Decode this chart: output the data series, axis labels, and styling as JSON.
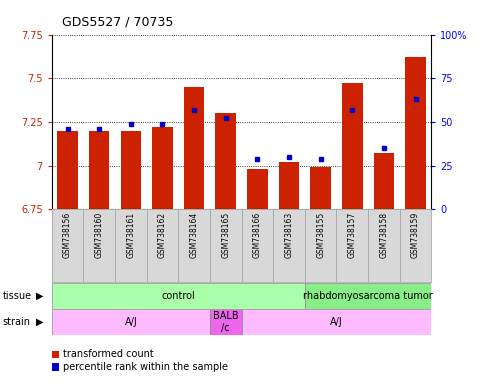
{
  "title": "GDS5527 / 70735",
  "samples": [
    "GSM738156",
    "GSM738160",
    "GSM738161",
    "GSM738162",
    "GSM738164",
    "GSM738165",
    "GSM738166",
    "GSM738163",
    "GSM738155",
    "GSM738157",
    "GSM738158",
    "GSM738159"
  ],
  "red_values": [
    7.2,
    7.2,
    7.2,
    7.22,
    7.45,
    7.3,
    6.98,
    7.02,
    6.99,
    7.47,
    7.07,
    7.62
  ],
  "blue_values": [
    46,
    46,
    49,
    49,
    57,
    52,
    29,
    30,
    29,
    57,
    35,
    63
  ],
  "ylim_left": [
    6.75,
    7.75
  ],
  "ylim_right": [
    0,
    100
  ],
  "yticks_left": [
    6.75,
    7.0,
    7.25,
    7.5,
    7.75
  ],
  "yticks_right": [
    0,
    25,
    50,
    75,
    100
  ],
  "ytick_labels_left": [
    "6.75",
    "7",
    "7.25",
    "7.5",
    "7.75"
  ],
  "ytick_labels_right": [
    "0",
    "25",
    "50",
    "75",
    "100%"
  ],
  "bar_bottom": 6.75,
  "bar_color": "#cc2200",
  "dot_color": "#0000cc",
  "plot_bg": "#ffffff",
  "xlabels_bg": "#d8d8d8",
  "tissue_groups": [
    {
      "label": "control",
      "start": 0,
      "end": 8,
      "color": "#aaffaa"
    },
    {
      "label": "rhabdomyosarcoma tumor",
      "start": 8,
      "end": 12,
      "color": "#88ee88"
    }
  ],
  "strain_groups": [
    {
      "label": "A/J",
      "start": 0,
      "end": 5,
      "color": "#ffbbff"
    },
    {
      "label": "BALB\n/c",
      "start": 5,
      "end": 6,
      "color": "#ee66ee"
    },
    {
      "label": "A/J",
      "start": 6,
      "end": 12,
      "color": "#ffbbff"
    }
  ],
  "legend_red": "transformed count",
  "legend_blue": "percentile rank within the sample",
  "label_tissue": "tissue",
  "label_strain": "strain"
}
